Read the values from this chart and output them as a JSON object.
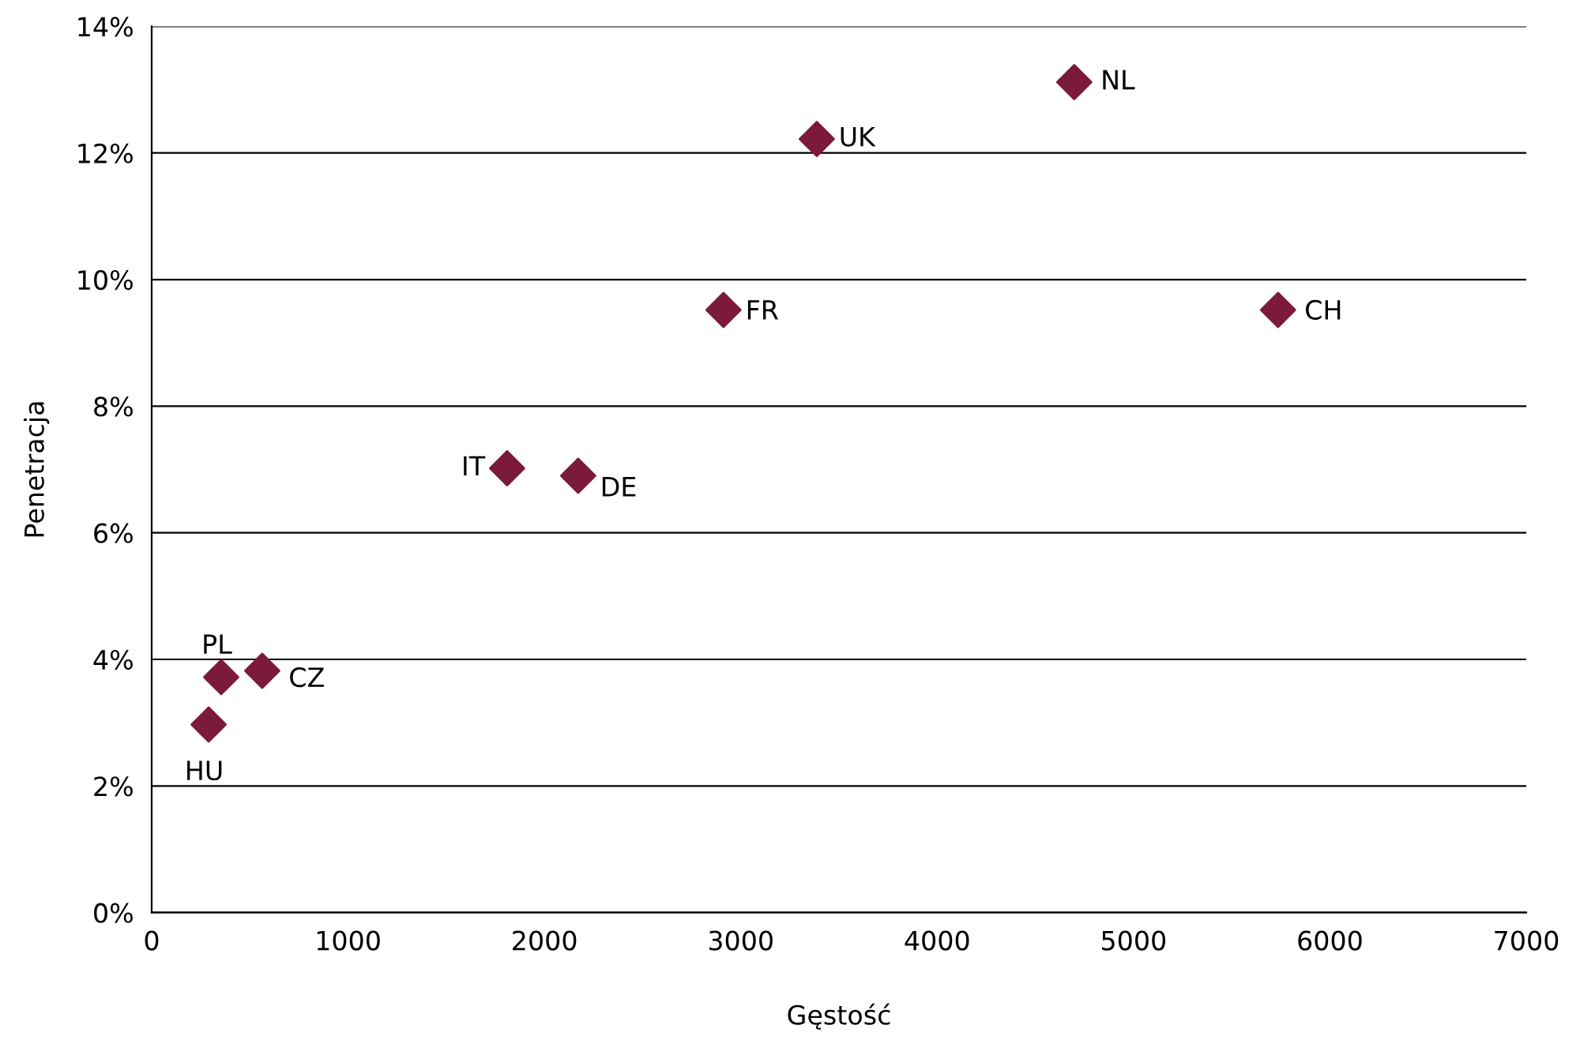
{
  "chart_data": {
    "type": "scatter",
    "xlabel": "Gęstość",
    "ylabel": "Penetracja",
    "x": [
      290,
      354,
      563,
      1810,
      2172,
      2912,
      3387,
      4698,
      5736
    ],
    "series": [
      {
        "color": "#7b1a3a",
        "values": [
          2.97,
          3.72,
          3.82,
          7.02,
          6.9,
          9.52,
          12.22,
          13.12,
          9.52
        ]
      }
    ],
    "marker": "diamond",
    "grid": "y",
    "xlim": [
      0,
      7000
    ],
    "xticks": [
      0,
      1000,
      2000,
      3000,
      4000,
      5000,
      6000,
      7000
    ],
    "ylim": [
      0,
      14
    ],
    "yticks": [
      {
        "value": 0,
        "label": "0%"
      },
      {
        "value": 2,
        "label": "2%"
      },
      {
        "value": 4,
        "label": "4%"
      },
      {
        "value": 6,
        "label": "6%"
      },
      {
        "value": 8,
        "label": "8%"
      },
      {
        "value": 10,
        "label": "10%"
      },
      {
        "value": 12,
        "label": "12%"
      },
      {
        "value": 14,
        "label": "14%"
      }
    ],
    "annotations": [
      {
        "text": "HU",
        "x": 290,
        "y": 2.97
      },
      {
        "text": "PL",
        "x": 354,
        "y": 3.72
      },
      {
        "text": "CZ",
        "x": 563,
        "y": 3.82
      },
      {
        "text": "IT",
        "x": 1810,
        "y": 7.02
      },
      {
        "text": "DE",
        "x": 2172,
        "y": 6.9
      },
      {
        "text": "FR",
        "x": 2912,
        "y": 9.52
      },
      {
        "text": "UK",
        "x": 3387,
        "y": 12.22
      },
      {
        "text": "NL",
        "x": 4698,
        "y": 13.12
      },
      {
        "text": "CH",
        "x": 5736,
        "y": 9.52
      }
    ]
  }
}
